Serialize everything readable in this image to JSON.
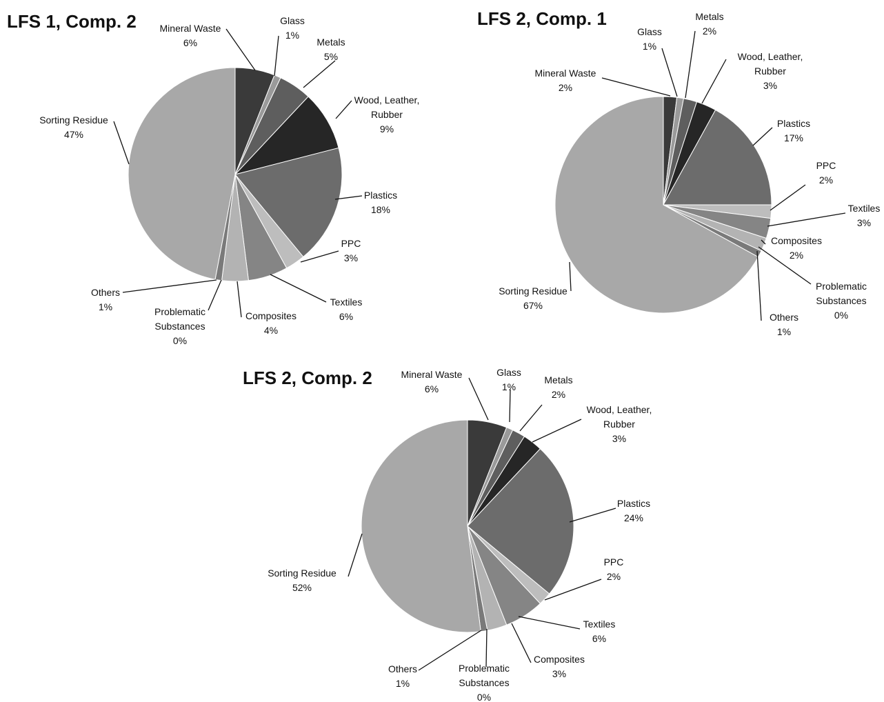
{
  "chart_data": [
    {
      "type": "pie",
      "title": "LFS 1, Comp. 2",
      "slices": [
        {
          "label": "Mineral Waste",
          "value": 6,
          "value_label": "6%",
          "color": "#3a3a3a"
        },
        {
          "label": "Glass",
          "value": 1,
          "value_label": "1%",
          "color": "#9a9a9a"
        },
        {
          "label": "Metals",
          "value": 5,
          "value_label": "5%",
          "color": "#5e5e5e"
        },
        {
          "label": "Wood, Leather, Rubber",
          "value": 9,
          "value_label": "9%",
          "color": "#262626"
        },
        {
          "label": "Plastics",
          "value": 18,
          "value_label": "18%",
          "color": "#6c6c6c"
        },
        {
          "label": "PPC",
          "value": 3,
          "value_label": "3%",
          "color": "#bdbdbd"
        },
        {
          "label": "Textiles",
          "value": 6,
          "value_label": "6%",
          "color": "#858585"
        },
        {
          "label": "Composites",
          "value": 4,
          "value_label": "4%",
          "color": "#b3b3b3"
        },
        {
          "label": "Problematic Substances",
          "value": 0,
          "value_label": "0%",
          "color": "#707070"
        },
        {
          "label": "Others",
          "value": 1,
          "value_label": "1%",
          "color": "#7a7a7a"
        },
        {
          "label": "Sorting Residue",
          "value": 47,
          "value_label": "47%",
          "color": "#a8a8a8"
        }
      ]
    },
    {
      "type": "pie",
      "title": "LFS 2, Comp. 1",
      "slices": [
        {
          "label": "Mineral Waste",
          "value": 2,
          "value_label": "2%",
          "color": "#3a3a3a"
        },
        {
          "label": "Glass",
          "value": 1,
          "value_label": "1%",
          "color": "#9a9a9a"
        },
        {
          "label": "Metals",
          "value": 2,
          "value_label": "2%",
          "color": "#5e5e5e"
        },
        {
          "label": "Wood, Leather, Rubber",
          "value": 3,
          "value_label": "3%",
          "color": "#262626"
        },
        {
          "label": "Plastics",
          "value": 17,
          "value_label": "17%",
          "color": "#6c6c6c"
        },
        {
          "label": "PPC",
          "value": 2,
          "value_label": "2%",
          "color": "#bdbdbd"
        },
        {
          "label": "Textiles",
          "value": 3,
          "value_label": "3%",
          "color": "#858585"
        },
        {
          "label": "Composites",
          "value": 2,
          "value_label": "2%",
          "color": "#b3b3b3"
        },
        {
          "label": "Problematic Substances",
          "value": 0,
          "value_label": "0%",
          "color": "#707070"
        },
        {
          "label": "Others",
          "value": 1,
          "value_label": "1%",
          "color": "#7a7a7a"
        },
        {
          "label": "Sorting Residue",
          "value": 67,
          "value_label": "67%",
          "color": "#a8a8a8"
        }
      ]
    },
    {
      "type": "pie",
      "title": "LFS 2, Comp. 2",
      "slices": [
        {
          "label": "Mineral Waste",
          "value": 6,
          "value_label": "6%",
          "color": "#3a3a3a"
        },
        {
          "label": "Glass",
          "value": 1,
          "value_label": "1%",
          "color": "#9a9a9a"
        },
        {
          "label": "Metals",
          "value": 2,
          "value_label": "2%",
          "color": "#5e5e5e"
        },
        {
          "label": "Wood, Leather, Rubber",
          "value": 3,
          "value_label": "3%",
          "color": "#262626"
        },
        {
          "label": "Plastics",
          "value": 24,
          "value_label": "24%",
          "color": "#6c6c6c"
        },
        {
          "label": "PPC",
          "value": 2,
          "value_label": "2%",
          "color": "#bdbdbd"
        },
        {
          "label": "Textiles",
          "value": 6,
          "value_label": "6%",
          "color": "#858585"
        },
        {
          "label": "Composites",
          "value": 3,
          "value_label": "3%",
          "color": "#b3b3b3"
        },
        {
          "label": "Problematic Substances",
          "value": 0,
          "value_label": "0%",
          "color": "#707070"
        },
        {
          "label": "Others",
          "value": 1,
          "value_label": "1%",
          "color": "#7a7a7a"
        },
        {
          "label": "Sorting Residue",
          "value": 52,
          "value_label": "52%",
          "color": "#a8a8a8"
        }
      ]
    }
  ]
}
